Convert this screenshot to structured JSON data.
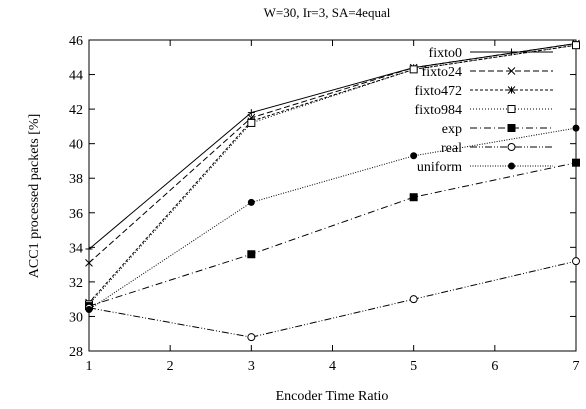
{
  "chart_data": {
    "type": "line",
    "title": "W=30, Ir=3, SA=4equal",
    "xlabel": "Encoder Time Ratio",
    "ylabel": "ACC1 processed packets [%]",
    "xlim": [
      1,
      7
    ],
    "ylim": [
      28,
      46
    ],
    "xticks": [
      1,
      2,
      3,
      4,
      5,
      6,
      7
    ],
    "yticks": [
      28,
      30,
      32,
      34,
      36,
      38,
      40,
      42,
      44,
      46
    ],
    "grid": false,
    "legend_position": "top-right",
    "x": [
      1,
      3,
      5,
      7
    ],
    "series": [
      {
        "name": "fixto0",
        "values": [
          33.9,
          41.8,
          44.4,
          45.8
        ],
        "line": "solid",
        "marker": "plus"
      },
      {
        "name": "fixto24",
        "values": [
          33.1,
          41.5,
          44.4,
          45.8
        ],
        "line": "dashed",
        "marker": "cross"
      },
      {
        "name": "fixto472",
        "values": [
          30.8,
          41.3,
          44.3,
          45.7
        ],
        "line": "short-dash",
        "marker": "star"
      },
      {
        "name": "fixto984",
        "values": [
          30.7,
          41.2,
          44.3,
          45.7
        ],
        "line": "dotted",
        "marker": "open-square"
      },
      {
        "name": "exp",
        "values": [
          30.6,
          33.6,
          36.9,
          38.9
        ],
        "line": "dash-dot",
        "marker": "filled-square"
      },
      {
        "name": "real",
        "values": [
          30.5,
          28.8,
          31.0,
          33.2
        ],
        "line": "dash-dot-dot",
        "marker": "open-circle"
      },
      {
        "name": "uniform",
        "values": [
          30.4,
          36.6,
          39.3,
          40.9
        ],
        "line": "fine-dotted",
        "marker": "filled-circle"
      }
    ]
  }
}
